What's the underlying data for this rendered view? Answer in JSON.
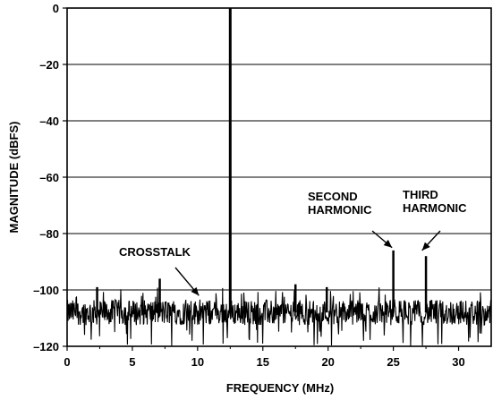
{
  "chart_data": {
    "type": "line",
    "title": "",
    "xlabel": "FREQUENCY (MHz)",
    "ylabel": "MAGNITUDE (dBFS)",
    "xlim": [
      0,
      32.5
    ],
    "ylim": [
      -120,
      0
    ],
    "xticks": [
      0,
      5,
      10,
      15,
      20,
      25,
      30
    ],
    "yticks": [
      0,
      -20,
      -40,
      -60,
      -80,
      -100,
      -120
    ],
    "x_tick_labels": [
      "0",
      "5",
      "10",
      "15",
      "20",
      "25",
      "30"
    ],
    "y_tick_labels": [
      "0",
      "–20",
      "–40",
      "–60",
      "–80",
      "–100",
      "–120"
    ],
    "grid": "horizontal",
    "noise_floor": {
      "mean_dbfs": -108,
      "min_dbfs": -120,
      "max_dbfs": -99,
      "x_range": [
        0,
        32.5
      ]
    },
    "peaks": [
      {
        "x": 12.5,
        "y": 0,
        "label": ""
      },
      {
        "x": 25.0,
        "y": -86,
        "label": "SECOND HARMONIC"
      },
      {
        "x": 27.5,
        "y": -88,
        "label": "THIRD HARMONIC"
      },
      {
        "x": 7.1,
        "y": -96,
        "label": ""
      },
      {
        "x": 17.5,
        "y": -98,
        "label": ""
      },
      {
        "x": 2.3,
        "y": -99,
        "label": ""
      },
      {
        "x": 19.9,
        "y": -99,
        "label": ""
      }
    ],
    "annotations": [
      {
        "lines": [
          "CROSSTALK"
        ],
        "arrow_to": {
          "x": 10.1,
          "y": -102
        }
      },
      {
        "lines": [
          "SECOND",
          "HARMONIC"
        ],
        "arrow_to": {
          "x": 24.9,
          "y": -85
        }
      },
      {
        "lines": [
          "THIRD",
          "HARMONIC"
        ],
        "arrow_to": {
          "x": 27.2,
          "y": -86
        }
      }
    ]
  }
}
